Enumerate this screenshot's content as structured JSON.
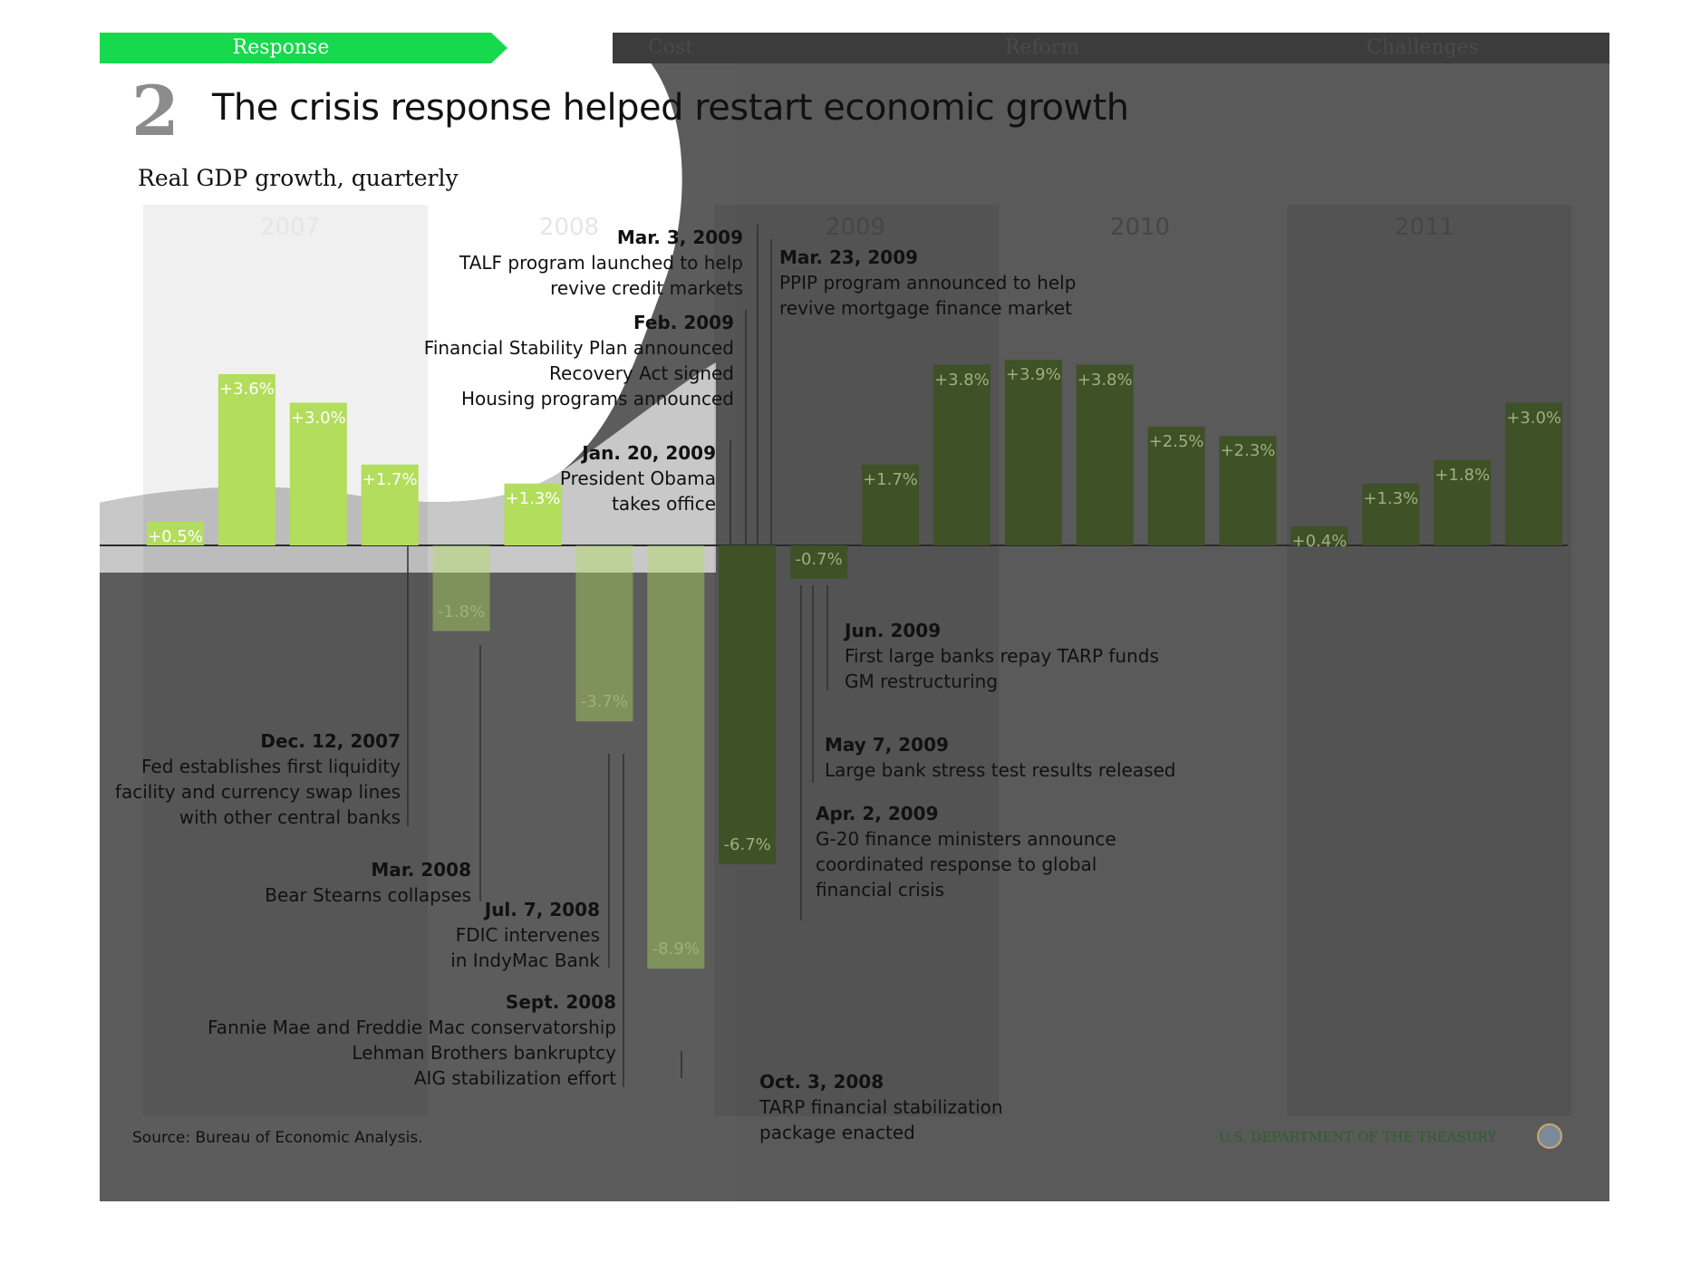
{
  "nav": {
    "tabs": [
      {
        "label": "Response",
        "active": true
      },
      {
        "label": "Cost",
        "active": false
      },
      {
        "label": "Reform",
        "active": false
      },
      {
        "label": "Challenges",
        "active": false
      }
    ]
  },
  "header": {
    "number": "2",
    "title": "The crisis response helped restart economic growth",
    "subtitle": "Real GDP growth, quarterly"
  },
  "footer": {
    "source": "Source: Bureau of Economic Analysis.",
    "department": "U.S. DEPARTMENT OF THE TREASURY"
  },
  "colors": {
    "active_tab": "#16d94d",
    "bar_light": "#b3dd5c",
    "bar_dark": "#3e5127",
    "overlay": "#5c5c5c",
    "nav_dark": "#3c3c3c"
  },
  "chart_data": {
    "type": "bar",
    "title": "Real GDP growth, quarterly",
    "ylabel": "",
    "xlabel": "",
    "ylim": [
      -9,
      4
    ],
    "years": [
      "2007",
      "2008",
      "2009",
      "2010",
      "2011"
    ],
    "categories": [
      "2007 Q1",
      "2007 Q2",
      "2007 Q3",
      "2007 Q4",
      "2008 Q1",
      "2008 Q2",
      "2008 Q3",
      "2008 Q4",
      "2009 Q1",
      "2009 Q2",
      "2009 Q3",
      "2009 Q4",
      "2010 Q1",
      "2010 Q2",
      "2010 Q3",
      "2010 Q4",
      "2011 Q1",
      "2011 Q2",
      "2011 Q3",
      "2011 Q4"
    ],
    "values": [
      0.5,
      3.6,
      3.0,
      1.7,
      -1.8,
      1.3,
      -3.7,
      -8.9,
      -6.7,
      -0.7,
      1.7,
      3.8,
      3.9,
      3.8,
      2.5,
      2.3,
      0.4,
      1.3,
      1.8,
      3.0
    ],
    "labels": [
      "+0.5%",
      "+3.6%",
      "+3.0%",
      "+1.7%",
      "-1.8%",
      "+1.3%",
      "-3.7%",
      "-8.9%",
      "-6.7%",
      "-0.7%",
      "+1.7%",
      "+3.8%",
      "+3.9%",
      "+3.8%",
      "+2.5%",
      "+2.3%",
      "+0.4%",
      "+1.3%",
      "+1.8%",
      "+3.0%"
    ],
    "annotations": [
      {
        "date": "Dec. 12, 2007",
        "lines": [
          "Fed establishes first liquidity",
          "facility and currency swap lines",
          "with other central banks"
        ]
      },
      {
        "date": "Mar. 2008",
        "lines": [
          "Bear Stearns collapses"
        ]
      },
      {
        "date": "Jul. 7, 2008",
        "lines": [
          "FDIC intervenes",
          "in IndyMac Bank"
        ]
      },
      {
        "date": "Sept. 2008",
        "lines": [
          "Fannie Mae and Freddie Mac conservatorship",
          "Lehman Brothers bankruptcy",
          "AIG stabilization effort"
        ]
      },
      {
        "date": "Oct. 3, 2008",
        "lines": [
          "TARP financial stabilization",
          "package enacted"
        ]
      },
      {
        "date": "Jan. 20, 2009",
        "lines": [
          "President Obama",
          "takes office"
        ]
      },
      {
        "date": "Feb. 2009",
        "lines": [
          "Financial Stability Plan announced",
          "Recovery Act signed",
          "Housing programs announced"
        ]
      },
      {
        "date": "Mar. 3, 2009",
        "lines": [
          "TALF program launched to help",
          "revive credit markets"
        ]
      },
      {
        "date": "Mar. 23, 2009",
        "lines": [
          "PPIP program announced to help",
          "revive mortgage finance market"
        ]
      },
      {
        "date": "Apr. 2, 2009",
        "lines": [
          "G-20 finance ministers announce",
          "coordinated response to global",
          "financial crisis"
        ]
      },
      {
        "date": "May 7, 2009",
        "lines": [
          "Large bank stress test results released"
        ]
      },
      {
        "date": "Jun. 2009",
        "lines": [
          "First large banks repay TARP funds",
          "GM restructuring"
        ]
      }
    ]
  }
}
